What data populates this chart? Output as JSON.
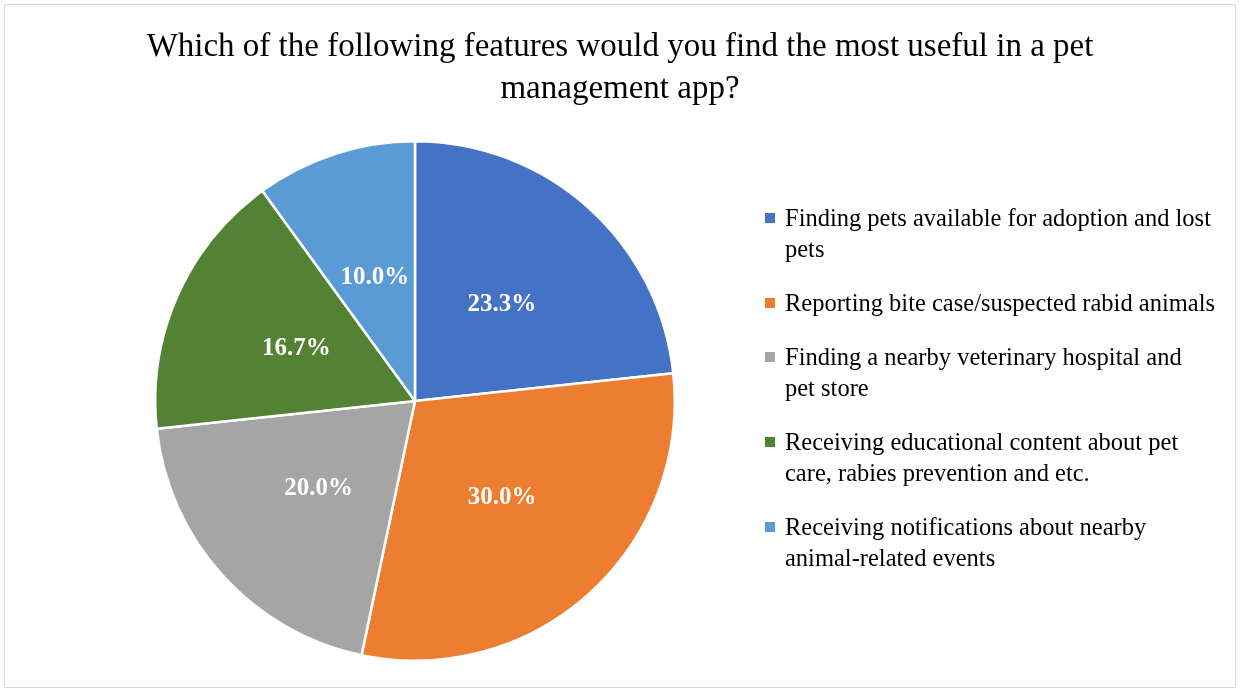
{
  "chart_data": {
    "type": "pie",
    "title": "Which of the following features would you find the most useful in a pet management app?",
    "categories": [
      "Finding pets available for adoption and lost pets",
      "Reporting bite case/suspected rabid animals",
      "Finding a nearby veterinary hospital and pet store",
      "Receiving educational content about pet care, rabies prevention and etc.",
      "Receiving notifications about nearby animal-related events"
    ],
    "values": [
      23.3,
      30.0,
      20.0,
      16.7,
      10.0
    ],
    "colors": [
      "#4472c4",
      "#ed7d31",
      "#a5a5a5",
      "#548235",
      "#5b9bd5"
    ],
    "value_labels": [
      "23.3%",
      "30.0%",
      "20.0%",
      "16.7%",
      "10.0%"
    ],
    "legend": "right"
  }
}
